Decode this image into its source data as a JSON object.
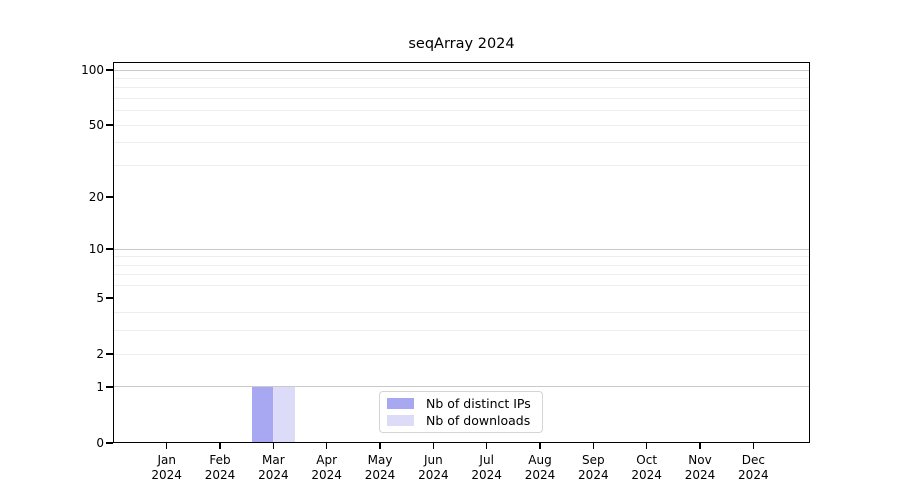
{
  "chart_data": {
    "type": "bar",
    "title": "seqArray 2024",
    "categories": [
      "Jan",
      "Feb",
      "Mar",
      "Apr",
      "May",
      "Jun",
      "Jul",
      "Aug",
      "Sep",
      "Oct",
      "Nov",
      "Dec"
    ],
    "year": "2024",
    "series": [
      {
        "name": "Nb of distinct IPs",
        "color": "#a7a7f2",
        "values": [
          0,
          0,
          1,
          0,
          0,
          0,
          0,
          0,
          0,
          0,
          0,
          0
        ]
      },
      {
        "name": "Nb of downloads",
        "color": "#dcdcf9",
        "values": [
          0,
          0,
          1,
          0,
          0,
          0,
          0,
          0,
          0,
          0,
          0,
          0
        ]
      }
    ],
    "y_axis": {
      "scale": "log1p",
      "max": 100,
      "ticks": [
        0,
        1,
        2,
        5,
        10,
        20,
        50,
        100
      ],
      "major_gridlines": [
        1,
        10,
        100
      ],
      "minor_gridlines": [
        2,
        3,
        4,
        6,
        7,
        8,
        9,
        30,
        40,
        50,
        60,
        70,
        80,
        90
      ],
      "labeled_minor_gridlines": [
        2,
        5,
        20,
        50
      ]
    },
    "legend": {
      "position": "bottom-center",
      "entries": [
        "Nb of distinct IPs",
        "Nb of downloads"
      ]
    },
    "colors": {
      "spine": "#000000",
      "grid_major": "#c9c9c9",
      "grid_minor": "#ededed",
      "text": "#000000",
      "legend_border": "#d4d4d4"
    }
  }
}
